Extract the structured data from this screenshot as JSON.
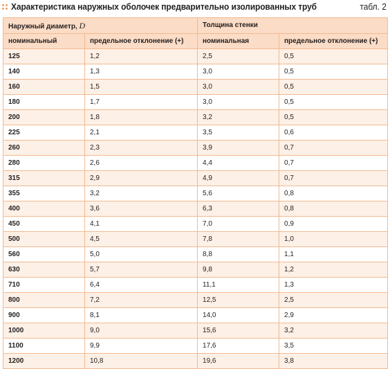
{
  "title": "Характеристика наружных оболочек предварительно изолированных труб",
  "table_label": "табл. 2",
  "header": {
    "group1_prefix": "Наружный диаметр, ",
    "group1_symbol": "D",
    "group2": "Толщина стенки",
    "col1": "номинальный",
    "col2": "предельное отклонение (+)",
    "col3": "номинальная",
    "col4": "предельное отклонение (+)"
  },
  "rows": [
    {
      "d_nom": "125",
      "d_dev": "1,2",
      "t_nom": "2,5",
      "t_dev": "0,5"
    },
    {
      "d_nom": "140",
      "d_dev": "1,3",
      "t_nom": "3,0",
      "t_dev": "0,5"
    },
    {
      "d_nom": "160",
      "d_dev": "1,5",
      "t_nom": "3,0",
      "t_dev": "0,5"
    },
    {
      "d_nom": "180",
      "d_dev": "1,7",
      "t_nom": "3,0",
      "t_dev": "0,5"
    },
    {
      "d_nom": "200",
      "d_dev": "1,8",
      "t_nom": "3,2",
      "t_dev": "0,5"
    },
    {
      "d_nom": "225",
      "d_dev": "2,1",
      "t_nom": "3,5",
      "t_dev": "0,6"
    },
    {
      "d_nom": "260",
      "d_dev": "2,3",
      "t_nom": "3,9",
      "t_dev": "0,7"
    },
    {
      "d_nom": "280",
      "d_dev": "2,6",
      "t_nom": "4,4",
      "t_dev": "0,7"
    },
    {
      "d_nom": "315",
      "d_dev": "2,9",
      "t_nom": "4,9",
      "t_dev": "0,7"
    },
    {
      "d_nom": "355",
      "d_dev": "3,2",
      "t_nom": "5,6",
      "t_dev": "0,8"
    },
    {
      "d_nom": "400",
      "d_dev": "3,6",
      "t_nom": "6,3",
      "t_dev": "0,8"
    },
    {
      "d_nom": "450",
      "d_dev": "4,1",
      "t_nom": "7,0",
      "t_dev": "0,9"
    },
    {
      "d_nom": "500",
      "d_dev": "4,5",
      "t_nom": "7,8",
      "t_dev": "1,0"
    },
    {
      "d_nom": "560",
      "d_dev": "5,0",
      "t_nom": "8,8",
      "t_dev": "1,1"
    },
    {
      "d_nom": "630",
      "d_dev": "5,7",
      "t_nom": "9,8",
      "t_dev": "1,2"
    },
    {
      "d_nom": "710",
      "d_dev": "6,4",
      "t_nom": "11,1",
      "t_dev": "1,3"
    },
    {
      "d_nom": "800",
      "d_dev": "7,2",
      "t_nom": "12,5",
      "t_dev": "2,5"
    },
    {
      "d_nom": "900",
      "d_dev": "8,1",
      "t_nom": "14,0",
      "t_dev": "2,9"
    },
    {
      "d_nom": "1000",
      "d_dev": "9,0",
      "t_nom": "15,6",
      "t_dev": "3,2"
    },
    {
      "d_nom": "1100",
      "d_dev": "9,9",
      "t_nom": "17,6",
      "t_dev": "3,5"
    },
    {
      "d_nom": "1200",
      "d_dev": "10,8",
      "t_nom": "19,6",
      "t_dev": "3,8"
    }
  ]
}
